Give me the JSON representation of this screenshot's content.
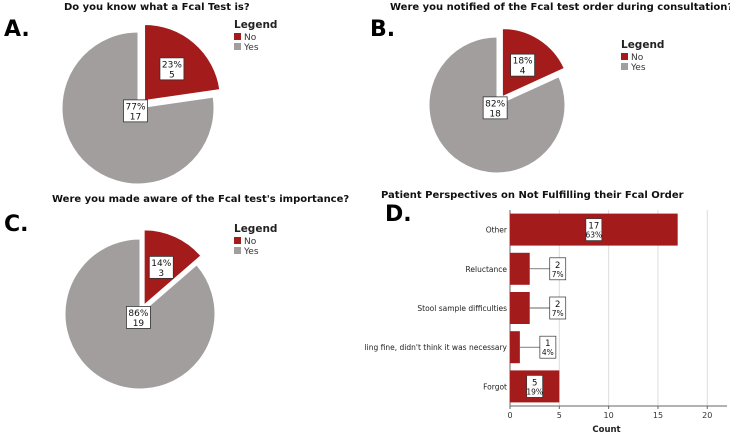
{
  "panels": {
    "A": {
      "letter": "A.",
      "title": "Do you know what a Fcal Test is?"
    },
    "B": {
      "letter": "B.",
      "title": "Were you notified of the Fcal test order during consultation?"
    },
    "C": {
      "letter": "C.",
      "title": "Were you made aware of the Fcal test's importance?"
    },
    "D": {
      "letter": "D.",
      "title": "Patient Perspectives on Not Fulfilling their Fcal Order"
    }
  },
  "legend": {
    "title": "Legend",
    "no_label": "No",
    "yes_label": "Yes"
  },
  "colors": {
    "no": "#a31b1b",
    "yes": "#a39e9e",
    "grid": "#dddddd",
    "axis": "#666666"
  },
  "chart_data": [
    {
      "id": "A",
      "type": "pie",
      "title": "Do you know what a Fcal Test is?",
      "legend_title": "Legend",
      "legend_position": "right",
      "slices": [
        {
          "label": "No",
          "pct_label": "23%",
          "count": 5,
          "value": 5,
          "exploded": true
        },
        {
          "label": "Yes",
          "pct_label": "77%",
          "count": 17,
          "value": 17,
          "exploded": false
        }
      ]
    },
    {
      "id": "B",
      "type": "pie",
      "title": "Were you notified of the Fcal test order during consultation?",
      "legend_title": "Legend",
      "legend_position": "right",
      "slices": [
        {
          "label": "No",
          "pct_label": "18%",
          "count": 4,
          "value": 4,
          "exploded": true
        },
        {
          "label": "Yes",
          "pct_label": "82%",
          "count": 18,
          "value": 18,
          "exploded": false
        }
      ]
    },
    {
      "id": "C",
      "type": "pie",
      "title": "Were you made aware of the Fcal test's importance?",
      "legend_title": "Legend",
      "legend_position": "right",
      "slices": [
        {
          "label": "No",
          "pct_label": "14%",
          "count": 3,
          "value": 3,
          "exploded": true
        },
        {
          "label": "Yes",
          "pct_label": "86%",
          "count": 19,
          "value": 19,
          "exploded": false
        }
      ]
    },
    {
      "id": "D",
      "type": "bar",
      "orientation": "horizontal",
      "title": "Patient Perspectives on Not Fulfilling their Fcal Order",
      "categories": [
        "Other",
        "Reluctance",
        "Stool sample difficulties",
        "Was feeling fine, didn't think it was necessary",
        "Forgot"
      ],
      "values": [
        17,
        2,
        2,
        1,
        5
      ],
      "pct_labels": [
        "63%",
        "7%",
        "7%",
        "4%",
        "19%"
      ],
      "xlabel": "Count",
      "xlim": [
        0,
        22
      ],
      "xticks": [
        0,
        5,
        10,
        15,
        20
      ],
      "grid": true
    }
  ]
}
